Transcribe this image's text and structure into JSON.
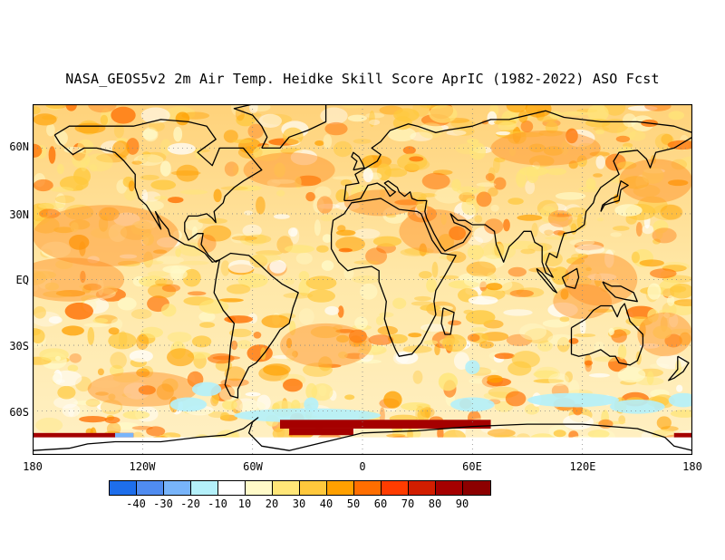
{
  "title": "NASA_GEOS5v2 2m Air Temp. Heidke Skill Score AprIC (1982-2022) ASO Fcst",
  "y_axis_labels": [
    "60N",
    "30N",
    "EQ",
    "30S",
    "60S"
  ],
  "x_axis_labels": [
    "180",
    "120W",
    "60W",
    "0",
    "60E",
    "120E",
    "180"
  ],
  "colorbar": {
    "labels": [
      "-40",
      "-30",
      "-20",
      "-10",
      "10",
      "20",
      "30",
      "40",
      "50",
      "60",
      "70",
      "80",
      "90"
    ],
    "colors": [
      "#1e6eeb",
      "#508cf0",
      "#78b4fa",
      "#b4f0fa",
      "#ffffff",
      "#fffac8",
      "#ffe678",
      "#ffc83c",
      "#ffa000",
      "#ff6e00",
      "#ff3c00",
      "#d21e00",
      "#a50000",
      "#8c0000"
    ]
  },
  "map": {
    "projection": "equirectangular",
    "lon_range": [
      -180,
      180
    ],
    "lat_range": [
      -80,
      80
    ],
    "field": "2m air temperature Heidke skill score"
  }
}
